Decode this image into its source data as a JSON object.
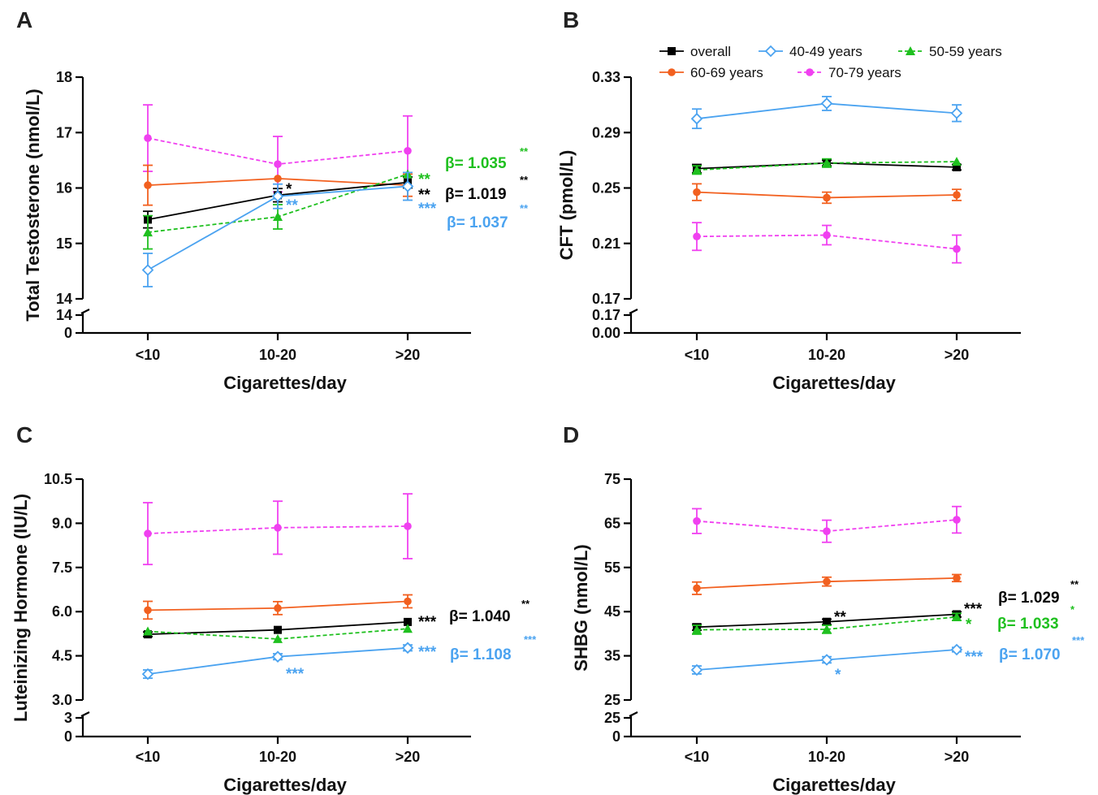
{
  "series_style": {
    "overall": {
      "label": "overall",
      "color": "#000000",
      "marker": "square",
      "dash": ""
    },
    "age_40_49": {
      "label": "40-49 years",
      "color": "#4ba3f0",
      "marker": "diamond-open",
      "dash": ""
    },
    "age_50_59": {
      "label": "50-59 years",
      "color": "#1fc01f",
      "marker": "triangle",
      "dash": "5,3"
    },
    "age_60_69": {
      "label": "60-69 years",
      "color": "#f2601f",
      "marker": "circle",
      "dash": ""
    },
    "age_70_79": {
      "label": "70-79 years",
      "color": "#f040f0",
      "marker": "circle",
      "dash": "5,3"
    }
  },
  "legend": {
    "placement": "top-right of panel B",
    "items": [
      "overall",
      "age_40_49",
      "age_50_59",
      "age_60_69",
      "age_70_79"
    ]
  },
  "chart_data": [
    {
      "panel": "A",
      "type": "line",
      "xlabel": "Cigarettes/day",
      "ylabel": "Total Testosterone (nmol/L)",
      "categories": [
        "<10",
        "10-20",
        ">20"
      ],
      "ylim": [
        14,
        18
      ],
      "yticks": [
        "14",
        "15",
        "16",
        "17",
        "18"
      ],
      "ybreak": {
        "ticks": [
          "0",
          "14"
        ]
      },
      "series": [
        {
          "key": "age_70_79",
          "values": [
            16.9,
            16.43,
            16.67
          ],
          "err": [
            0.6,
            0.5,
            0.63
          ]
        },
        {
          "key": "age_60_69",
          "values": [
            16.05,
            16.17,
            16.05
          ],
          "err": [
            0.36,
            0.0,
            0.2
          ]
        },
        {
          "key": "overall",
          "values": [
            15.43,
            15.87,
            16.1
          ],
          "err": [
            0.15,
            0.12,
            0.1
          ]
        },
        {
          "key": "age_50_59",
          "values": [
            15.2,
            15.48,
            16.25
          ],
          "err": [
            0.3,
            0.22,
            0.0
          ]
        },
        {
          "key": "age_40_49",
          "values": [
            14.52,
            15.85,
            16.03
          ],
          "err": [
            0.3,
            0.22,
            0.25
          ]
        }
      ],
      "annotations": [
        {
          "series": "overall",
          "point": 1,
          "stars": "*"
        },
        {
          "series": "age_40_49",
          "point": 1,
          "stars": "**"
        },
        {
          "series": "age_50_59",
          "point": 2,
          "stars": "**"
        },
        {
          "series": "overall",
          "point": 2,
          "stars": "**"
        },
        {
          "series": "age_40_49",
          "point": 2,
          "stars": "***"
        }
      ],
      "betas": [
        {
          "series": "age_50_59",
          "text": "β= 1.035",
          "sig": "**"
        },
        {
          "series": "overall",
          "text": "β= 1.019",
          "sig": "**"
        },
        {
          "series": "age_40_49",
          "text": "β= 1.037",
          "sig": "**"
        }
      ]
    },
    {
      "panel": "B",
      "type": "line",
      "xlabel": "Cigarettes/day",
      "ylabel": "CFT (pmol/L)",
      "categories": [
        "<10",
        "10-20",
        ">20"
      ],
      "ylim": [
        0.17,
        0.33
      ],
      "yticks": [
        "0.17",
        "0.21",
        "0.25",
        "0.29",
        "0.33"
      ],
      "ybreak": {
        "ticks": [
          "0.00",
          "0.17"
        ]
      },
      "series": [
        {
          "key": "age_40_49",
          "values": [
            0.3,
            0.311,
            0.304
          ],
          "err": [
            0.007,
            0.005,
            0.006
          ]
        },
        {
          "key": "overall",
          "values": [
            0.264,
            0.268,
            0.265
          ],
          "err": [
            0.003,
            0.002,
            0.002
          ]
        },
        {
          "key": "age_50_59",
          "values": [
            0.263,
            0.268,
            0.269
          ],
          "err": [
            0.003,
            0.003,
            0.0
          ]
        },
        {
          "key": "age_60_69",
          "values": [
            0.247,
            0.243,
            0.245
          ],
          "err": [
            0.006,
            0.004,
            0.004
          ]
        },
        {
          "key": "age_70_79",
          "values": [
            0.215,
            0.216,
            0.206
          ],
          "err": [
            0.01,
            0.007,
            0.01
          ]
        }
      ],
      "annotations": [],
      "betas": []
    },
    {
      "panel": "C",
      "type": "line",
      "xlabel": "Cigarettes/day",
      "ylabel": "Luteinizing Hormone (IU/L)",
      "categories": [
        "<10",
        "10-20",
        ">20"
      ],
      "ylim": [
        3.0,
        10.5
      ],
      "yticks": [
        "3.0",
        "4.5",
        "6.0",
        "7.5",
        "9.0",
        "10.5"
      ],
      "ybreak": {
        "ticks": [
          "0",
          "3"
        ]
      },
      "series": [
        {
          "key": "age_70_79",
          "values": [
            8.65,
            8.85,
            8.9
          ],
          "err": [
            1.05,
            0.9,
            1.1
          ]
        },
        {
          "key": "age_60_69",
          "values": [
            6.05,
            6.12,
            6.35
          ],
          "err": [
            0.3,
            0.22,
            0.22
          ]
        },
        {
          "key": "overall",
          "values": [
            5.23,
            5.38,
            5.65
          ],
          "err": [
            0.08,
            0.0,
            0.0
          ]
        },
        {
          "key": "age_50_59",
          "values": [
            5.33,
            5.07,
            5.42
          ],
          "err": [
            0.0,
            0.0,
            0.0
          ]
        },
        {
          "key": "age_40_49",
          "values": [
            3.88,
            4.47,
            4.77
          ],
          "err": [
            0.14,
            0.1,
            0.1
          ]
        }
      ],
      "annotations": [
        {
          "series": "age_40_49",
          "point": 1,
          "stars": "***"
        },
        {
          "series": "overall",
          "point": 2,
          "stars": "***"
        },
        {
          "series": "age_40_49",
          "point": 2,
          "stars": "***"
        }
      ],
      "betas": [
        {
          "series": "overall",
          "text": "β= 1.040",
          "sig": "**"
        },
        {
          "series": "age_40_49",
          "text": "β= 1.108",
          "sig": "***"
        }
      ]
    },
    {
      "panel": "D",
      "type": "line",
      "xlabel": "Cigarettes/day",
      "ylabel": "SHBG (nmol/L)",
      "categories": [
        "<10",
        "10-20",
        ">20"
      ],
      "ylim": [
        25,
        75
      ],
      "yticks": [
        "25",
        "35",
        "45",
        "55",
        "65",
        "75"
      ],
      "ybreak": {
        "ticks": [
          "0",
          "25"
        ]
      },
      "series": [
        {
          "key": "age_70_79",
          "values": [
            65.5,
            63.2,
            65.8
          ],
          "err": [
            2.8,
            2.5,
            3.0
          ]
        },
        {
          "key": "age_60_69",
          "values": [
            50.3,
            51.8,
            52.6
          ],
          "err": [
            1.4,
            1.0,
            0.8
          ]
        },
        {
          "key": "overall",
          "values": [
            41.5,
            42.7,
            44.4
          ],
          "err": [
            0.7,
            0.6,
            0.6
          ]
        },
        {
          "key": "age_50_59",
          "values": [
            40.9,
            41.0,
            43.8
          ],
          "err": [
            1.0,
            0.9,
            0.8
          ]
        },
        {
          "key": "age_40_49",
          "values": [
            31.8,
            34.1,
            36.4
          ],
          "err": [
            0.9,
            0.7,
            0.5
          ]
        }
      ],
      "annotations": [
        {
          "series": "overall",
          "point": 1,
          "stars": "**"
        },
        {
          "series": "age_40_49",
          "point": 1,
          "stars": "*"
        },
        {
          "series": "overall",
          "point": 2,
          "stars": "***"
        },
        {
          "series": "age_50_59",
          "point": 2,
          "stars": "*"
        },
        {
          "series": "age_40_49",
          "point": 2,
          "stars": "***"
        }
      ],
      "betas": [
        {
          "series": "overall",
          "text": "β= 1.029",
          "sig": "**"
        },
        {
          "series": "age_50_59",
          "text": "β= 1.033",
          "sig": "*"
        },
        {
          "series": "age_40_49",
          "text": "β= 1.070",
          "sig": "***"
        }
      ]
    }
  ]
}
